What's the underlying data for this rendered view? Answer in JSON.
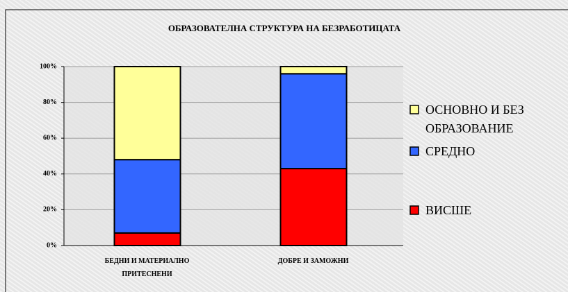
{
  "chart_data": {
    "type": "stacked_bar_100",
    "title": "ОБРАЗОВАТЕЛНА СТРУКТУРА НА БЕЗРАБОТИЦАТА",
    "categories": [
      "БЕДНИ И МАТЕРИАЛНО ПРИТЕСНЕНИ",
      "ДОБРЕ И ЗАМОЖНИ"
    ],
    "series": [
      {
        "name": "ВИСШЕ",
        "color": "#ff0000",
        "values": [
          7,
          43
        ]
      },
      {
        "name": "СРЕДНО",
        "color": "#3366ff",
        "values": [
          41,
          53
        ]
      },
      {
        "name": "ОСНОВНО И БЕЗ ОБРАЗОВАНИЕ",
        "color": "#ffff99",
        "values": [
          52,
          4
        ]
      }
    ],
    "ylim": [
      0,
      100
    ],
    "yticks": [
      {
        "value": 0,
        "label": "0%"
      },
      {
        "value": 20,
        "label": "20%"
      },
      {
        "value": 40,
        "label": "40%"
      },
      {
        "value": 60,
        "label": "60%"
      },
      {
        "value": 80,
        "label": "80%"
      },
      {
        "value": 100,
        "label": "100%"
      }
    ],
    "grid": true
  }
}
